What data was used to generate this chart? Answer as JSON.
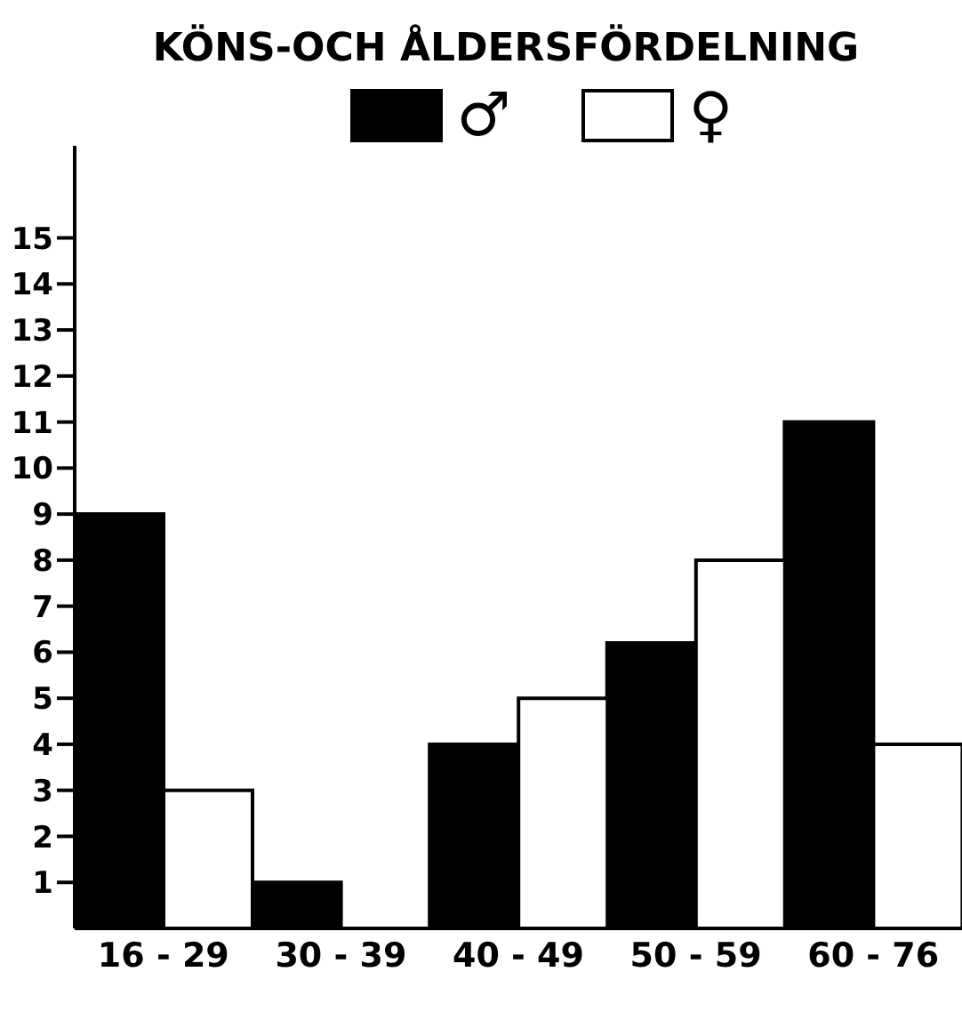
{
  "chart_data": {
    "type": "bar",
    "title": "KÖNS-OCH ÅLDERSFÖRDELNING",
    "categories": [
      "16 - 29",
      "30 - 39",
      "40 - 49",
      "50 - 59",
      "60 - 76"
    ],
    "series": [
      {
        "name": "♂",
        "color": "#000000",
        "values": [
          9,
          1,
          4,
          6.2,
          11
        ]
      },
      {
        "name": "♀",
        "color": "#ffffff",
        "values": [
          3,
          0,
          5,
          8,
          4
        ]
      }
    ],
    "ylim": [
      0,
      17
    ],
    "yticks": [
      1,
      2,
      3,
      4,
      5,
      6,
      7,
      8,
      9,
      10,
      11,
      12,
      13,
      14,
      15
    ],
    "grid": false,
    "legend": "top"
  }
}
